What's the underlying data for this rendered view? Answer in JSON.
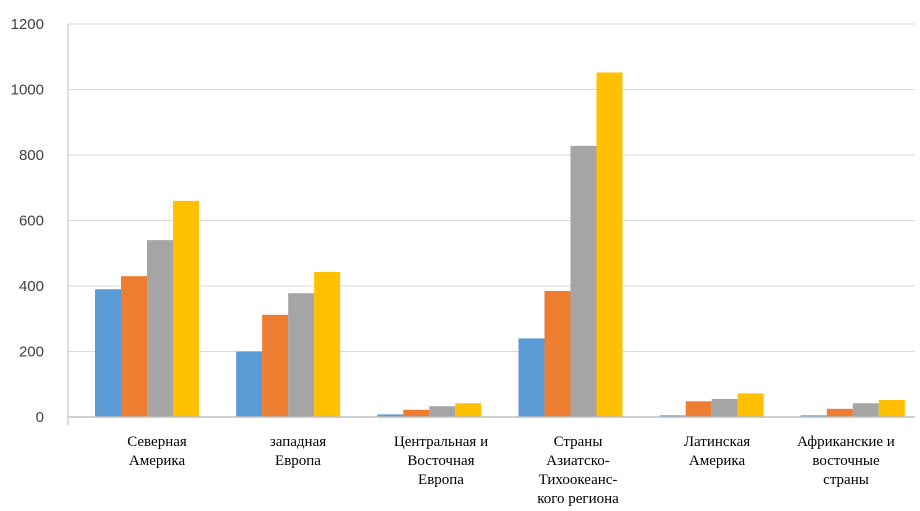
{
  "chart_data": {
    "type": "bar",
    "categories": [
      [
        "Северная",
        "Америка"
      ],
      [
        "западная",
        "Европа"
      ],
      [
        "Центральная и",
        "Восточная",
        "Европа"
      ],
      [
        "Страны",
        "Азиатско-",
        "Тихоокеанс-",
        "кого региона"
      ],
      [
        "Латинская",
        "Америка"
      ],
      [
        "Африканские и",
        "восточные",
        "страны"
      ]
    ],
    "series": [
      {
        "color": "#5b9bd5",
        "values": [
          390,
          200,
          8,
          240,
          5,
          5
        ]
      },
      {
        "color": "#ed7d31",
        "values": [
          430,
          312,
          22,
          385,
          48,
          25
        ]
      },
      {
        "color": "#a5a5a5",
        "values": [
          540,
          378,
          33,
          828,
          55,
          42
        ]
      },
      {
        "color": "#ffc000",
        "values": [
          660,
          443,
          42,
          1052,
          72,
          52
        ]
      }
    ],
    "yticks": [
      "0",
      "200",
      "400",
      "600",
      "800",
      "1000",
      "1200"
    ],
    "ylim": [
      0,
      1200
    ],
    "grid": true
  }
}
